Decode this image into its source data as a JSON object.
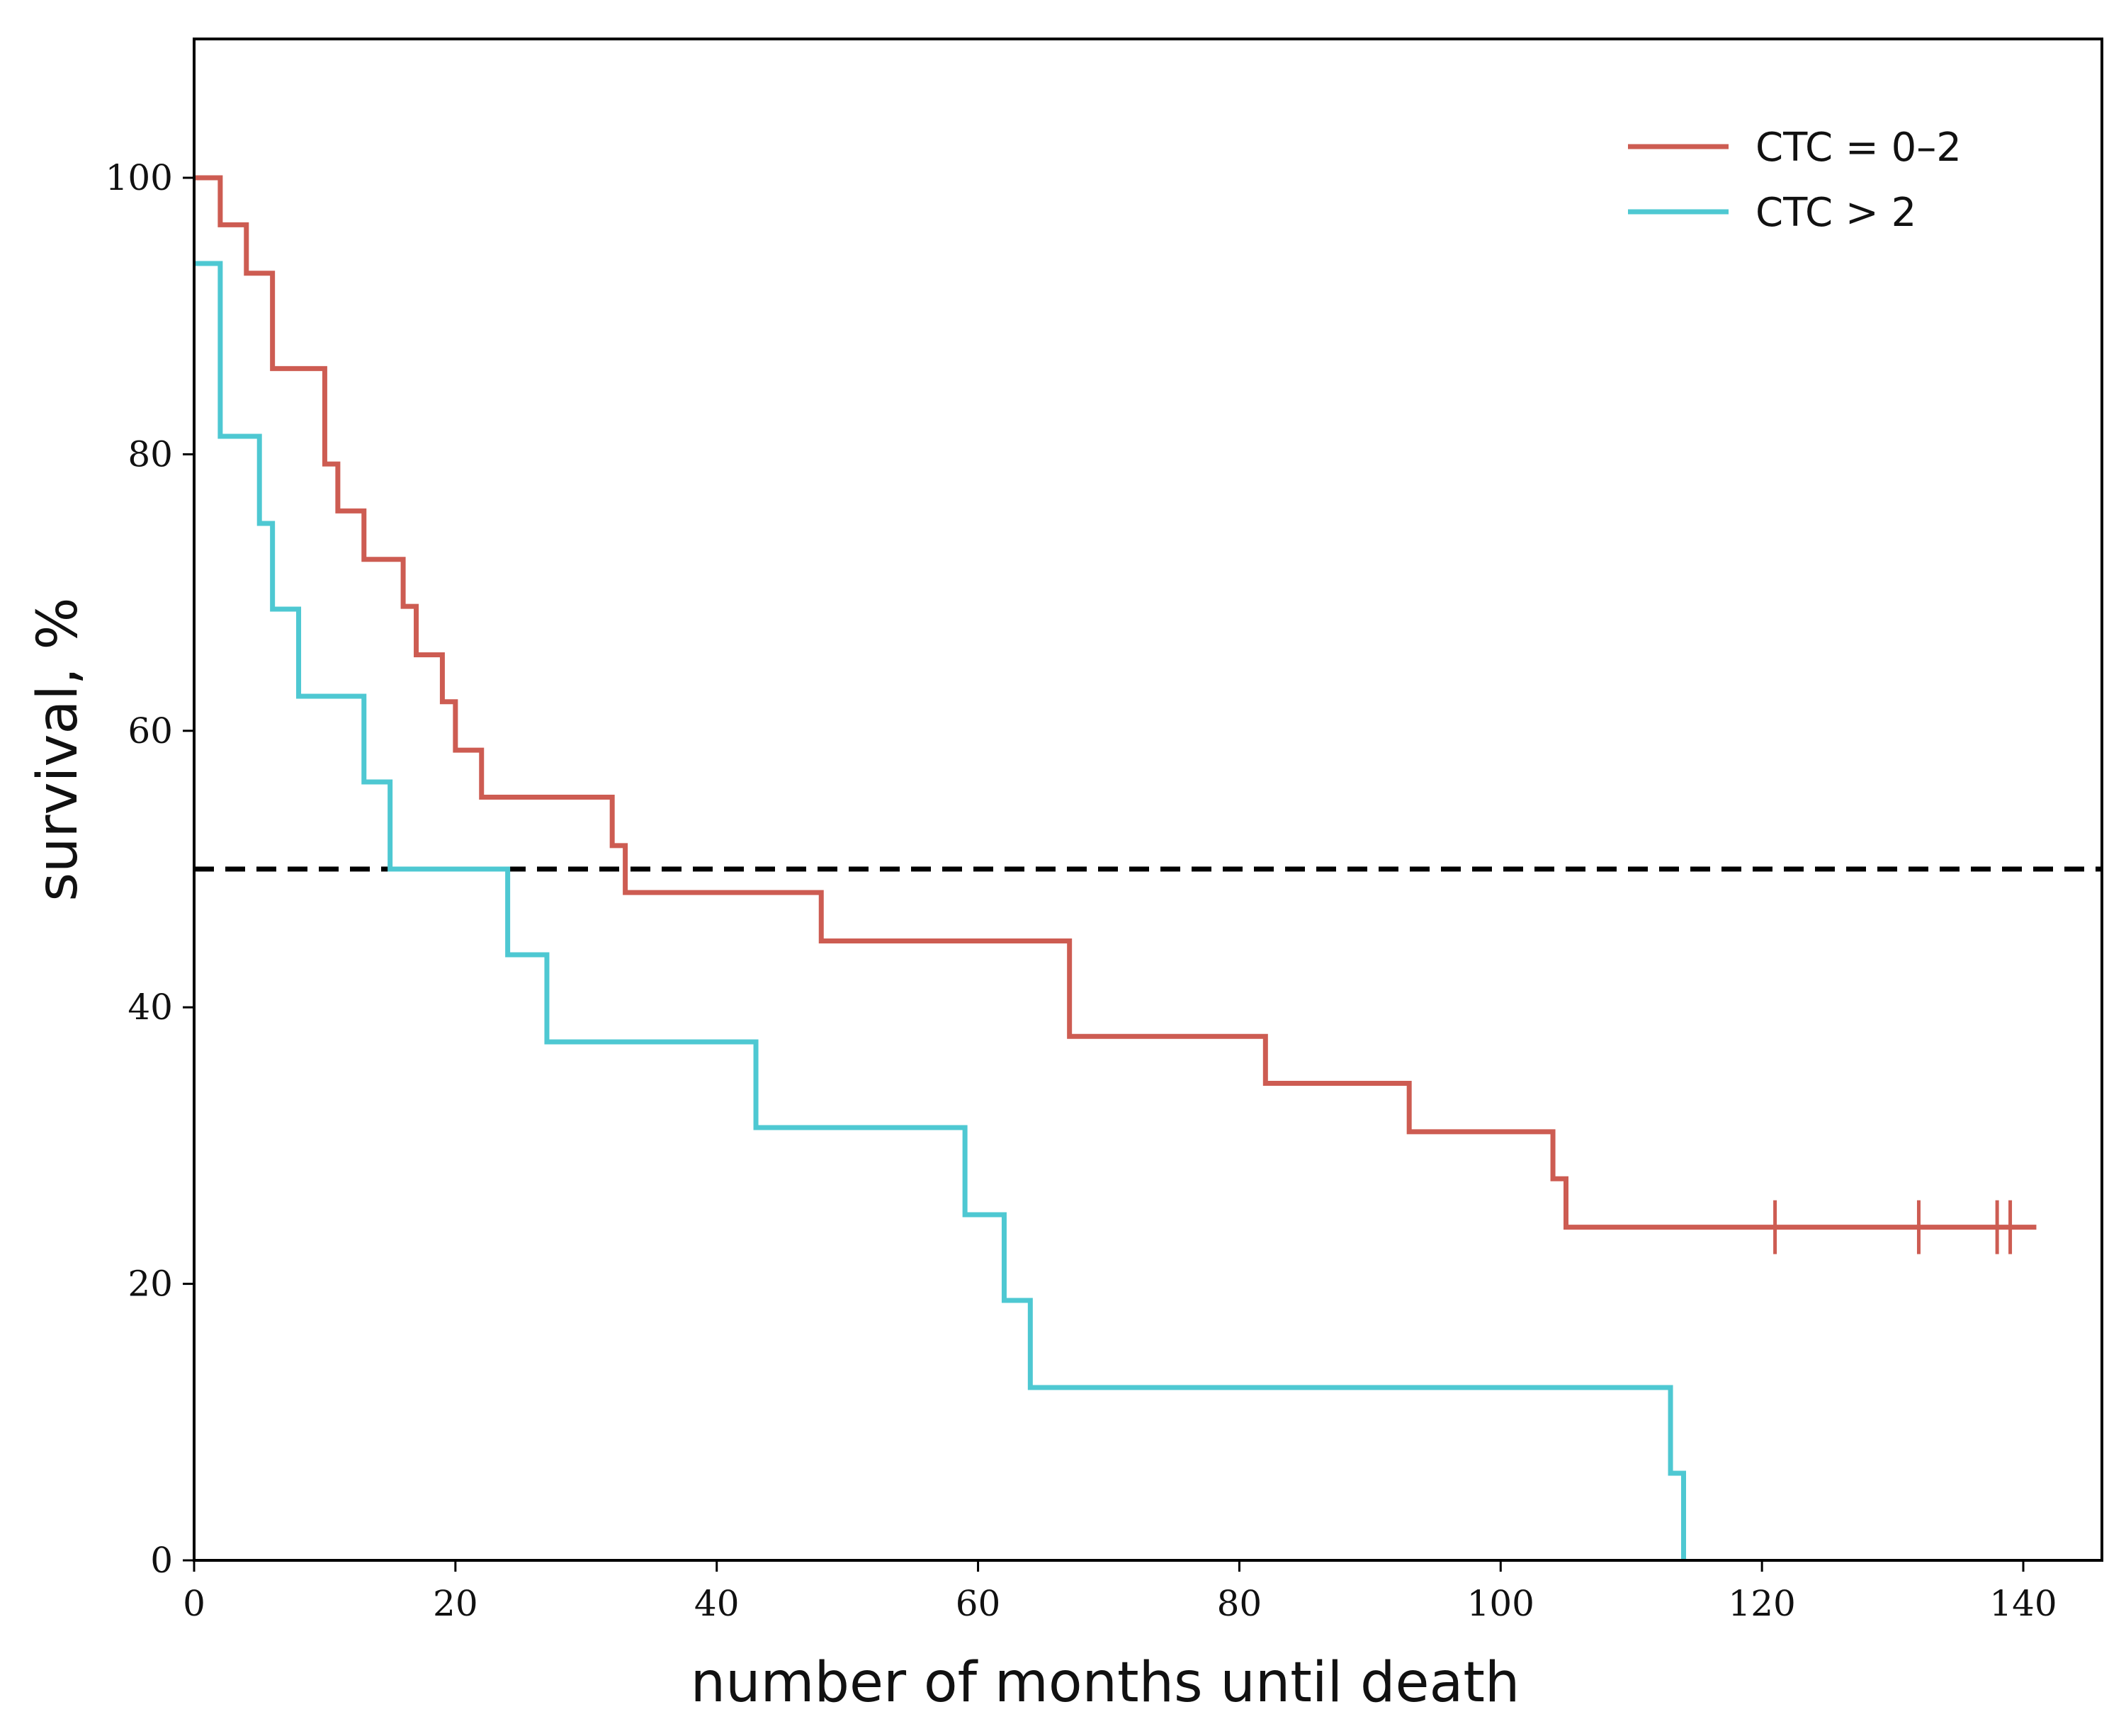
{
  "chart_data": {
    "type": "line",
    "subtype": "kaplan-meier step",
    "title": "",
    "xlabel": "number of months until death",
    "ylabel": "survival, %",
    "xlim": [
      0,
      146
    ],
    "ylim": [
      0,
      110
    ],
    "xticks": [
      0,
      20,
      40,
      60,
      80,
      100,
      120,
      140
    ],
    "yticks": [
      0,
      20,
      40,
      60,
      80,
      100
    ],
    "xtick_labels": [
      "0",
      "20",
      "40",
      "60",
      "80",
      "100",
      "120",
      "140"
    ],
    "ytick_labels": [
      "0",
      "20",
      "40",
      "60",
      "80",
      "100"
    ],
    "grid": false,
    "legend_position": "top-right",
    "reference_line": {
      "y": 50,
      "style": "dashed",
      "color": "#000000"
    },
    "series": [
      {
        "name": "CTC = 0–2",
        "color": "#cd5c52",
        "steps": [
          [
            0,
            100
          ],
          [
            2,
            96.6
          ],
          [
            4,
            93.1
          ],
          [
            6,
            86.2
          ],
          [
            10,
            79.3
          ],
          [
            11,
            75.9
          ],
          [
            13,
            72.4
          ],
          [
            16,
            69.0
          ],
          [
            17,
            65.5
          ],
          [
            19,
            62.1
          ],
          [
            20,
            58.6
          ],
          [
            22,
            55.2
          ],
          [
            32,
            51.7
          ],
          [
            33,
            48.3
          ],
          [
            48,
            44.8
          ],
          [
            67,
            37.9
          ],
          [
            82,
            34.5
          ],
          [
            93,
            31.0
          ],
          [
            104,
            27.6
          ],
          [
            105,
            24.1
          ]
        ],
        "end_x": 141,
        "censor_x": [
          121,
          132,
          138,
          139
        ]
      },
      {
        "name": "CTC > 2",
        "color": "#4ec8d2",
        "steps": [
          [
            0,
            93.8
          ],
          [
            2,
            81.3
          ],
          [
            5,
            75.0
          ],
          [
            6,
            68.8
          ],
          [
            8,
            62.5
          ],
          [
            13,
            56.3
          ],
          [
            15,
            50.0
          ],
          [
            24,
            43.8
          ],
          [
            27,
            37.5
          ],
          [
            43,
            31.3
          ],
          [
            59,
            25.0
          ],
          [
            62,
            18.8
          ],
          [
            64,
            12.5
          ],
          [
            113,
            6.3
          ],
          [
            114,
            0
          ]
        ],
        "end_x": 114,
        "censor_x": []
      }
    ]
  }
}
